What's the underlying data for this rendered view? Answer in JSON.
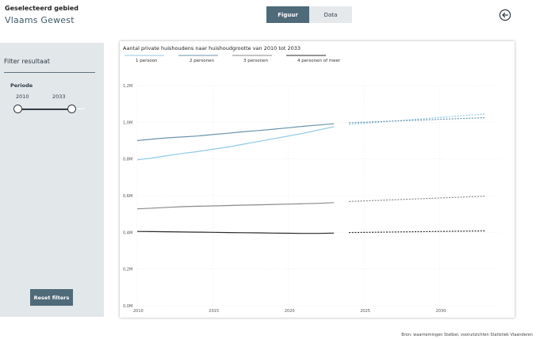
{
  "header": {
    "area_caption": "Geselecteerd gebied",
    "area_name": "Vlaams Gewest",
    "toggle": {
      "figuur": "Figuur",
      "data": "Data",
      "active": "Figuur"
    },
    "back_icon": "arrow-left-circle-icon"
  },
  "sidebar": {
    "title": "Filter resultaat",
    "period_label": "Periode",
    "period_start": "2010",
    "period_end": "2033",
    "slider": {
      "min": 2010,
      "max": 2033,
      "start": 2010,
      "end": 2033
    },
    "reset_label": "Reset filters"
  },
  "chart_data": {
    "type": "line",
    "title": "Aantal private huishoudens naar huishoudgrootte van 2010 tot 2033",
    "xlabel": "",
    "ylabel": "",
    "xlim": [
      2010,
      2034
    ],
    "ylim": [
      0,
      1.2
    ],
    "x_ticks": [
      2010,
      2015,
      2020,
      2025,
      2030
    ],
    "y_ticks": [
      {
        "value": 0,
        "label": "0,0M"
      },
      {
        "value": 0.2,
        "label": "0,2M"
      },
      {
        "value": 0.4,
        "label": "0,4M"
      },
      {
        "value": 0.6,
        "label": "0,6M"
      },
      {
        "value": 0.8,
        "label": "0,8M"
      },
      {
        "value": 1.0,
        "label": "1,0M"
      },
      {
        "value": 1.2,
        "label": "1,2M"
      }
    ],
    "grid": true,
    "legend_position": "top",
    "observed_end": 2023,
    "forecast_start": 2024,
    "series": [
      {
        "name": "1 persoon",
        "color": "#8fc9e6",
        "observed": {
          "x": [
            2010,
            2011,
            2012,
            2013,
            2014,
            2015,
            2016,
            2017,
            2018,
            2019,
            2020,
            2021,
            2022,
            2023
          ],
          "y": [
            0.795,
            0.805,
            0.818,
            0.83,
            0.84,
            0.853,
            0.865,
            0.88,
            0.895,
            0.91,
            0.925,
            0.94,
            0.958,
            0.975
          ]
        },
        "forecast": {
          "x": [
            2024,
            2033
          ],
          "y": [
            0.988,
            1.045
          ]
        }
      },
      {
        "name": "2 personen",
        "color": "#6a94ac",
        "observed": {
          "x": [
            2010,
            2011,
            2012,
            2013,
            2014,
            2015,
            2016,
            2017,
            2018,
            2019,
            2020,
            2021,
            2022,
            2023
          ],
          "y": [
            0.9,
            0.908,
            0.915,
            0.92,
            0.925,
            0.933,
            0.94,
            0.948,
            0.955,
            0.962,
            0.97,
            0.978,
            0.985,
            0.992
          ]
        },
        "forecast": {
          "x": [
            2024,
            2033
          ],
          "y": [
            0.997,
            1.025
          ]
        }
      },
      {
        "name": "3 personen",
        "color": "#8a8a8a",
        "observed": {
          "x": [
            2010,
            2011,
            2012,
            2013,
            2014,
            2015,
            2016,
            2017,
            2018,
            2019,
            2020,
            2021,
            2022,
            2023
          ],
          "y": [
            0.528,
            0.532,
            0.536,
            0.54,
            0.542,
            0.544,
            0.546,
            0.548,
            0.55,
            0.552,
            0.554,
            0.556,
            0.558,
            0.562
          ]
        },
        "forecast": {
          "x": [
            2024,
            2033
          ],
          "y": [
            0.568,
            0.597
          ]
        }
      },
      {
        "name": "4 personen of meer",
        "color": "#2b2b2b",
        "observed": {
          "x": [
            2010,
            2011,
            2012,
            2013,
            2014,
            2015,
            2016,
            2017,
            2018,
            2019,
            2020,
            2021,
            2022,
            2023
          ],
          "y": [
            0.405,
            0.404,
            0.403,
            0.402,
            0.401,
            0.4,
            0.399,
            0.398,
            0.397,
            0.396,
            0.395,
            0.394,
            0.394,
            0.396
          ]
        },
        "forecast": {
          "x": [
            2024,
            2033
          ],
          "y": [
            0.399,
            0.408
          ]
        }
      }
    ]
  },
  "footer": {
    "source": "Bron: waarnemingen Statbel, vooruitzichten Statistiek Vlaanderen"
  }
}
